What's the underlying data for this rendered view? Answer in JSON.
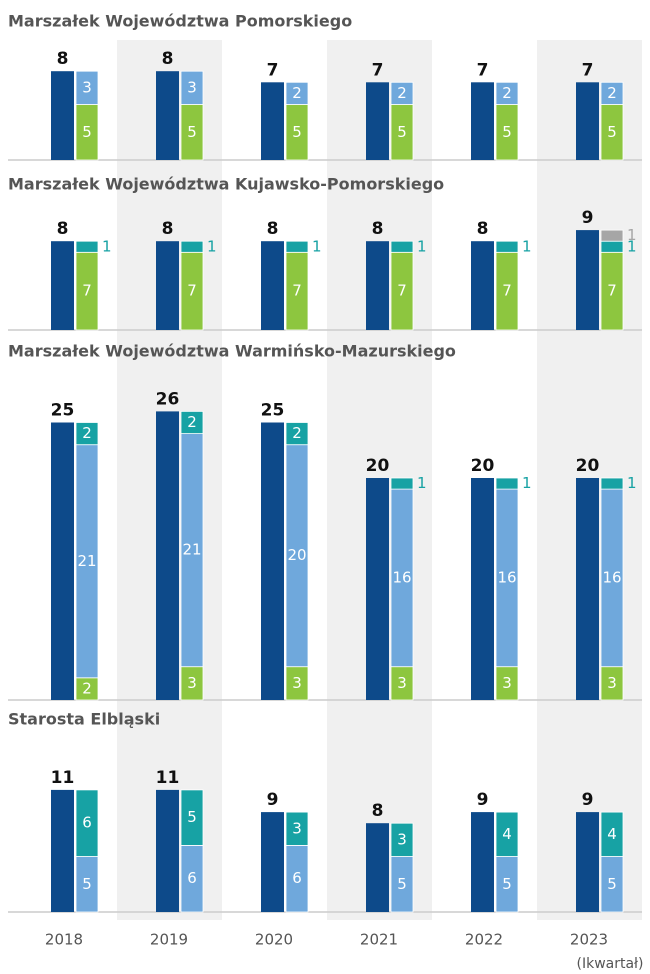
{
  "chart_data": {
    "type": "bar",
    "categories": [
      "2018",
      "2019",
      "2020",
      "2021",
      "2022",
      "2023"
    ],
    "note": "(Ikwartał)",
    "total_color": "#0d4a8a",
    "panels": [
      {
        "title": "Marszałek Województwa Pomorskiego",
        "totals": [
          8,
          8,
          7,
          7,
          7,
          7
        ],
        "series": [
          {
            "color": "#8dc63f",
            "values": [
              5,
              5,
              5,
              5,
              5,
              5
            ]
          },
          {
            "color": "#6fa8dc",
            "values": [
              3,
              3,
              2,
              2,
              2,
              2
            ]
          }
        ]
      },
      {
        "title": "Marszałek Województwa Kujawsko-Pomorskiego",
        "totals": [
          8,
          8,
          8,
          8,
          8,
          9
        ],
        "series": [
          {
            "color": "#8dc63f",
            "values": [
              7,
              7,
              7,
              7,
              7,
              7
            ]
          },
          {
            "color": "#17a2a4",
            "values": [
              1,
              1,
              1,
              1,
              1,
              1
            ]
          },
          {
            "color": "#a6a6a6",
            "values": [
              null,
              null,
              null,
              null,
              null,
              1
            ]
          }
        ]
      },
      {
        "title": "Marszałek Województwa Warmińsko-Mazurskiego",
        "totals": [
          25,
          26,
          25,
          20,
          20,
          20
        ],
        "series": [
          {
            "color": "#8dc63f",
            "values": [
              2,
              3,
              3,
              3,
              3,
              3
            ]
          },
          {
            "color": "#6fa8dc",
            "values": [
              21,
              21,
              20,
              16,
              16,
              16
            ]
          },
          {
            "color": "#17a2a4",
            "values": [
              2,
              2,
              2,
              1,
              1,
              1
            ]
          }
        ]
      },
      {
        "title": "Starosta Elbląski",
        "totals": [
          11,
          11,
          9,
          8,
          9,
          9
        ],
        "series": [
          {
            "color": "#6fa8dc",
            "values": [
              5,
              6,
              6,
              5,
              5,
              5
            ]
          },
          {
            "color": "#17a2a4",
            "values": [
              6,
              5,
              3,
              3,
              4,
              4
            ]
          }
        ]
      }
    ]
  }
}
